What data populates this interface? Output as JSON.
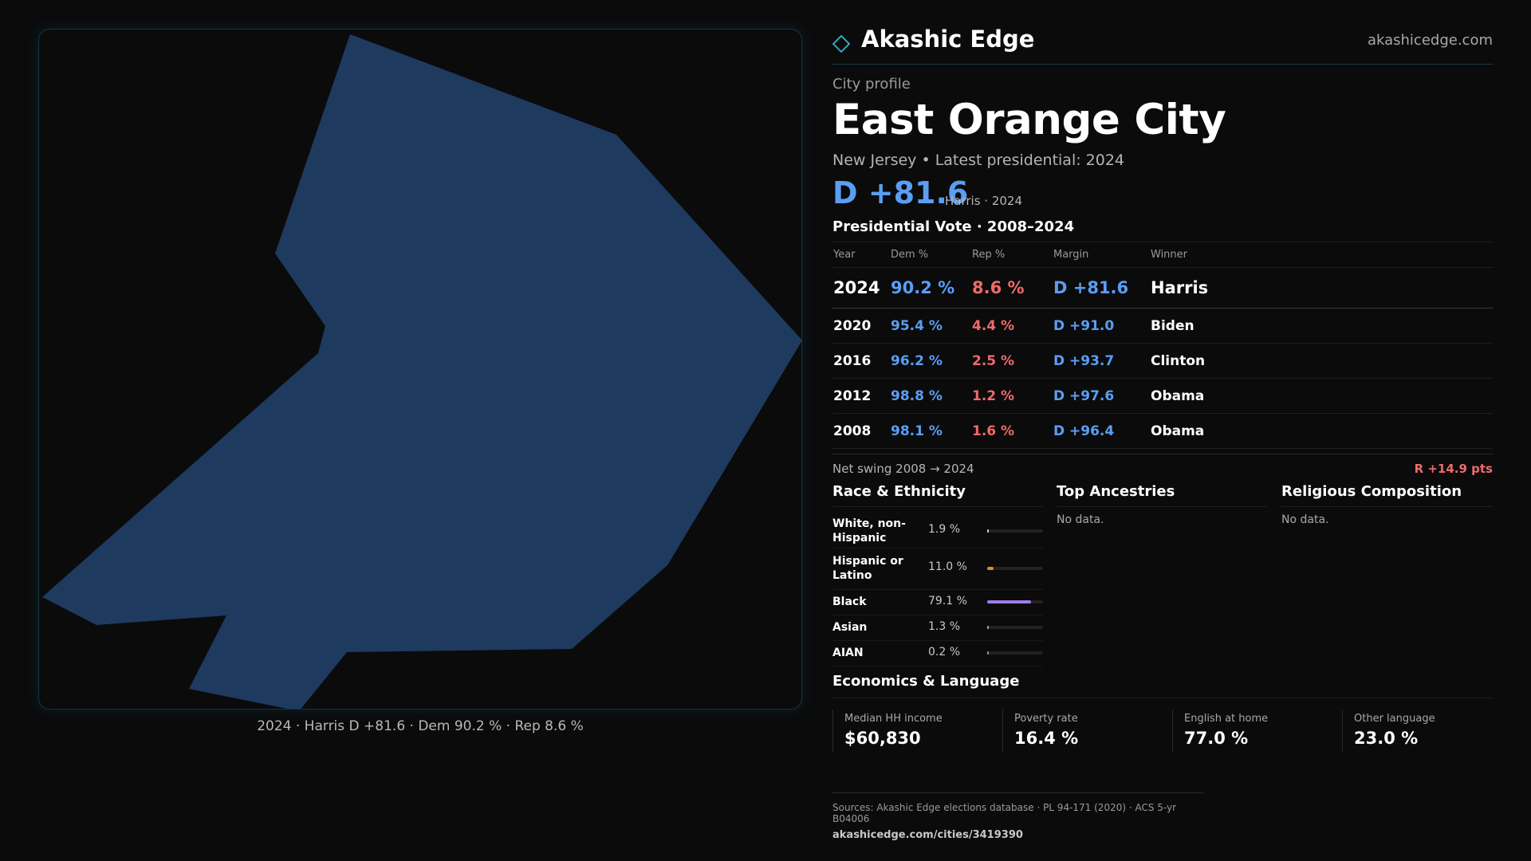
{
  "map": {
    "fill_color": "#1f3a5f",
    "caption": "2024 · Harris D +81.6 · Dem 90.2 % · Rep 8.6 %"
  },
  "brand": {
    "logo_icon": "diamond-icon",
    "name": "Akashic Edge",
    "domain": "akashicedge.com"
  },
  "profile": {
    "kicker": "City profile",
    "title": "East Orange City",
    "subtitle": "New Jersey • Latest presidential: 2024",
    "margin": "D +81.6",
    "margin_note": "Harris · 2024"
  },
  "votes": {
    "title": "Presidential Vote · 2008–2024",
    "headers": {
      "year": "Year",
      "dem": "Dem %",
      "rep": "Rep %",
      "margin": "Margin",
      "winner": "Winner"
    },
    "rows": [
      {
        "year": "2024",
        "dem": "90.2 %",
        "rep": "8.6 %",
        "margin": "D +81.6",
        "winner": "Harris"
      },
      {
        "year": "2020",
        "dem": "95.4 %",
        "rep": "4.4 %",
        "margin": "D +91.0",
        "winner": "Biden"
      },
      {
        "year": "2016",
        "dem": "96.2 %",
        "rep": "2.5 %",
        "margin": "D +93.7",
        "winner": "Clinton"
      },
      {
        "year": "2012",
        "dem": "98.8 %",
        "rep": "1.2 %",
        "margin": "D +97.6",
        "winner": "Obama"
      },
      {
        "year": "2008",
        "dem": "98.1 %",
        "rep": "1.6 %",
        "margin": "D +96.4",
        "winner": "Obama"
      }
    ],
    "swing_label": "Net swing 2008 → 2024",
    "swing_value": "R +14.9 pts"
  },
  "race": {
    "title": "Race & Ethnicity",
    "rows": [
      {
        "label": "White, non-Hispanic",
        "pct": "1.9 %",
        "share": 0.019,
        "color": "#d0d0d0"
      },
      {
        "label": "Hispanic or Latino",
        "pct": "11.0 %",
        "share": 0.11,
        "color": "#e08a2a"
      },
      {
        "label": "Black",
        "pct": "79.1 %",
        "share": 0.791,
        "color": "#a07de6"
      },
      {
        "label": "Asian",
        "pct": "1.3 %",
        "share": 0.013,
        "color": "#8ab0d0"
      },
      {
        "label": "AIAN",
        "pct": "0.2 %",
        "share": 0.002,
        "color": "#9a9a9a"
      }
    ]
  },
  "ancestries": {
    "title": "Top Ancestries",
    "empty": "No data."
  },
  "religion": {
    "title": "Religious Composition",
    "empty": "No data."
  },
  "economics": {
    "title": "Economics & Language",
    "stats": [
      {
        "label": "Median HH income",
        "value": "$60,830"
      },
      {
        "label": "Poverty rate",
        "value": "16.4 %"
      },
      {
        "label": "English at home",
        "value": "77.0 %"
      },
      {
        "label": "Other language",
        "value": "23.0 %"
      }
    ]
  },
  "footer": {
    "sources": "Sources: Akashic Edge elections database · PL 94-171 (2020) · ACS 5-yr B04006",
    "url": "akashicedge.com/cities/3419390"
  }
}
